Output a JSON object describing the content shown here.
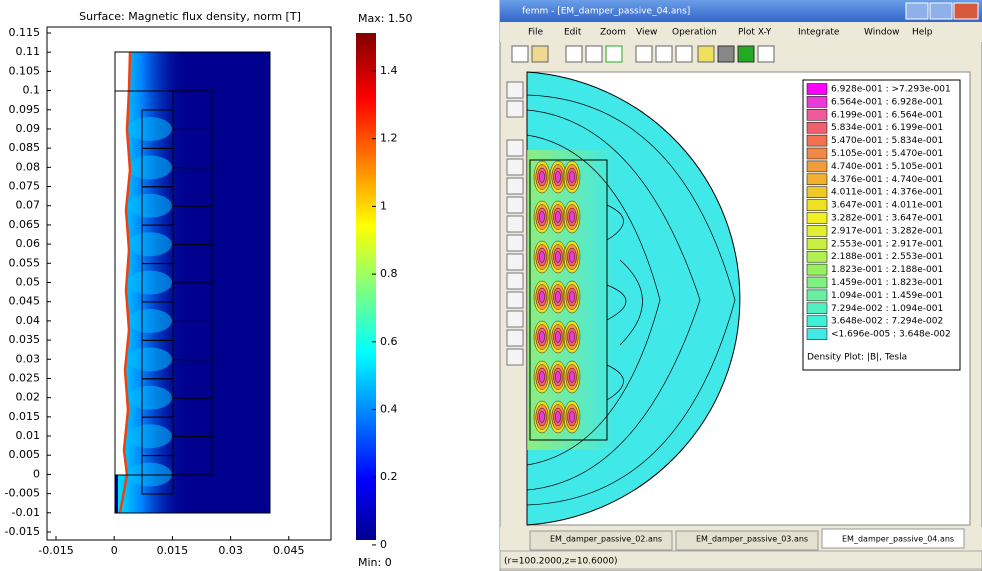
{
  "comsol": {
    "title": "Surface: Magnetic flux density, norm [T]",
    "y_ticks": [
      "0.115",
      "0.11",
      "0.105",
      "0.1",
      "0.095",
      "0.09",
      "0.085",
      "0.08",
      "0.075",
      "0.07",
      "0.065",
      "0.06",
      "0.055",
      "0.05",
      "0.045",
      "0.04",
      "0.035",
      "0.03",
      "0.025",
      "0.02",
      "0.015",
      "0.01",
      "0.005",
      "0",
      "-0.005",
      "-0.01",
      "-0.015"
    ],
    "x_ticks": [
      "-0.015",
      "0",
      "0.015",
      "0.03",
      "0.045"
    ],
    "colorbar": {
      "max": "Max: 1.50",
      "min": "Min: 0",
      "ticks": [
        "1.4",
        "1.2",
        "1",
        "0.8",
        "0.6",
        "0.4",
        "0.2",
        "0"
      ]
    }
  },
  "femm": {
    "window_title": "femm - [EM_damper_passive_04.ans]",
    "menu": [
      "File",
      "Edit",
      "Zoom",
      "View",
      "Operation",
      "Plot X-Y",
      "Integrate",
      "Window",
      "Help"
    ],
    "legend": {
      "entries": [
        {
          "label": "6.928e-001 : >7.293e-001",
          "color": "#ff00ff"
        },
        {
          "label": "6.564e-001 : 6.928e-001",
          "color": "#e83cd8"
        },
        {
          "label": "6.199e-001 : 6.564e-001",
          "color": "#f05a9a"
        },
        {
          "label": "5.834e-001 : 6.199e-001",
          "color": "#f06070"
        },
        {
          "label": "5.470e-001 : 5.834e-001",
          "color": "#f07050"
        },
        {
          "label": "5.105e-001 : 5.470e-001",
          "color": "#f08848"
        },
        {
          "label": "4.740e-001 : 5.105e-001",
          "color": "#f09c3c"
        },
        {
          "label": "4.376e-001 : 4.740e-001",
          "color": "#f0b030"
        },
        {
          "label": "4.011e-001 : 4.376e-001",
          "color": "#f0c828"
        },
        {
          "label": "3.647e-001 : 4.011e-001",
          "color": "#f0e020"
        },
        {
          "label": "3.282e-001 : 3.647e-001",
          "color": "#f0f020"
        },
        {
          "label": "2.917e-001 : 3.282e-001",
          "color": "#e0f030"
        },
        {
          "label": "2.553e-001 : 2.917e-001",
          "color": "#c8f040"
        },
        {
          "label": "2.188e-001 : 2.553e-001",
          "color": "#b0f050"
        },
        {
          "label": "1.823e-001 : 2.188e-001",
          "color": "#98f060"
        },
        {
          "label": "1.459e-001 : 1.823e-001",
          "color": "#80f080"
        },
        {
          "label": "1.094e-001 : 1.459e-001",
          "color": "#68f0a0"
        },
        {
          "label": "7.294e-002 : 1.094e-001",
          "color": "#50f0c0"
        },
        {
          "label": "3.648e-002 : 7.294e-002",
          "color": "#40f0d8"
        },
        {
          "label": "<1.696e-005 : 3.648e-002",
          "color": "#40e8e8"
        }
      ],
      "caption": "Density Plot: |B|, Tesla"
    },
    "tabs": [
      "EM_damper_passive_02.ans",
      "EM_damper_passive_03.ans",
      "EM_damper_passive_04.ans"
    ],
    "status": "(r=100.2000,z=10.6000)"
  }
}
